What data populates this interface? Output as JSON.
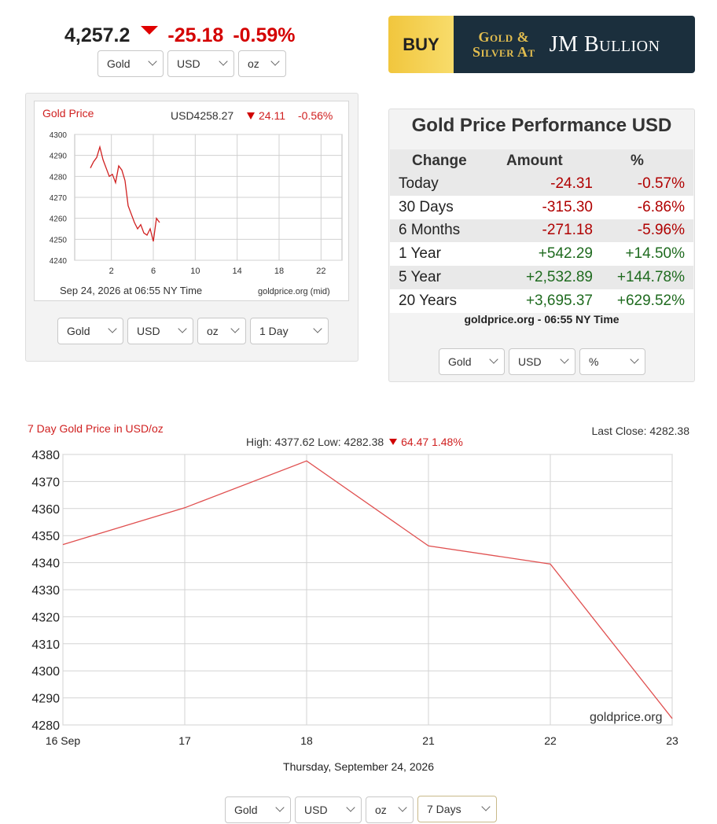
{
  "top": {
    "price": "4,257.2",
    "change": "-25.18",
    "change_pct": "-0.59%",
    "selects": {
      "metal": "Gold",
      "currency": "USD",
      "unit": "oz"
    }
  },
  "banner": {
    "buy": "BUY",
    "line1": "Gold &",
    "line2": "Silver At",
    "brand": "JM Bullion"
  },
  "mini_chart": {
    "label": "Gold Price",
    "quote": "USD4258.27",
    "change": "24.11",
    "change_pct": "-0.56%",
    "unit_tag": "oz",
    "footer_time": "Sep 24, 2026 at 06:55 NY Time",
    "footer_source": "goldprice.org (mid)",
    "selects": {
      "metal": "Gold",
      "currency": "USD",
      "unit": "oz",
      "range": "1 Day"
    }
  },
  "performance": {
    "title": "Gold Price Performance USD",
    "headers": {
      "change": "Change",
      "amount": "Amount",
      "pct": "%"
    },
    "rows": [
      {
        "period": "Today",
        "amount": "-24.31",
        "pct": "-0.57%",
        "dir": "neg"
      },
      {
        "period": "30 Days",
        "amount": "-315.30",
        "pct": "-6.86%",
        "dir": "neg"
      },
      {
        "period": "6 Months",
        "amount": "-271.18",
        "pct": "-5.96%",
        "dir": "neg"
      },
      {
        "period": "1 Year",
        "amount": "+542.29",
        "pct": "+14.50%",
        "dir": "pos"
      },
      {
        "period": "5 Year",
        "amount": "+2,532.89",
        "pct": "+144.78%",
        "dir": "pos"
      },
      {
        "period": "20 Years",
        "amount": "+3,695.37",
        "pct": "+629.52%",
        "dir": "pos"
      }
    ],
    "footer": "goldprice.org - 06:55 NY Time",
    "selects": {
      "metal": "Gold",
      "currency": "USD",
      "mode": "%"
    }
  },
  "week_chart_header": {
    "title": "7 Day Gold Price in USD/oz",
    "last_close": "Last Close: 4282.38",
    "high_low": "High: 4377.62 Low: 4282.38",
    "change": "64.47 1.48%",
    "watermark": "goldprice.org",
    "date_caption": "Thursday, September 24, 2026"
  },
  "bottom_selects": {
    "metal": "Gold",
    "currency": "USD",
    "unit": "oz",
    "range": "7 Days"
  },
  "colors": {
    "down": "#d40000",
    "up": "#1f6b1f",
    "line": "#e05050",
    "banner_bg": "#1b2f3d",
    "banner_gold": "#f1c63d"
  },
  "icons": {
    "down_arrow": "triangle-down-icon",
    "select_chevron": "chevron-down-icon"
  },
  "chart_data": [
    {
      "type": "line",
      "x": [
        0,
        0.3,
        0.6,
        0.9,
        1.2,
        1.5,
        1.8,
        2.1,
        2.4,
        2.7,
        3.0,
        3.3,
        3.6,
        3.9,
        4.2,
        4.5,
        4.8,
        5.1,
        5.4,
        5.7,
        6.0,
        6.3,
        6.6
      ],
      "y": [
        4284,
        4287,
        4289,
        4294,
        4288,
        4284,
        4280,
        4281,
        4277,
        4285,
        4283,
        4278,
        4266,
        4262,
        4258,
        4255,
        4257,
        4253,
        4252,
        4255,
        4249,
        4260,
        4258
      ],
      "xticks": [
        2,
        6,
        10,
        14,
        18,
        22
      ],
      "yticks": [
        4240,
        4250,
        4260,
        4270,
        4280,
        4290,
        4300
      ],
      "xlim": [
        -1.5,
        24
      ],
      "ylim": [
        4240,
        4300
      ],
      "grid": true
    },
    {
      "type": "line",
      "categories": [
        "16 Sep",
        "17",
        "18",
        "21",
        "22",
        "23"
      ],
      "values": [
        4346.7,
        4360.3,
        4377.62,
        4346.2,
        4339.5,
        4282.38
      ],
      "yticks": [
        4280,
        4290,
        4300,
        4310,
        4320,
        4330,
        4340,
        4350,
        4360,
        4370,
        4380
      ],
      "ylim": [
        4280,
        4380
      ],
      "grid": true
    }
  ]
}
